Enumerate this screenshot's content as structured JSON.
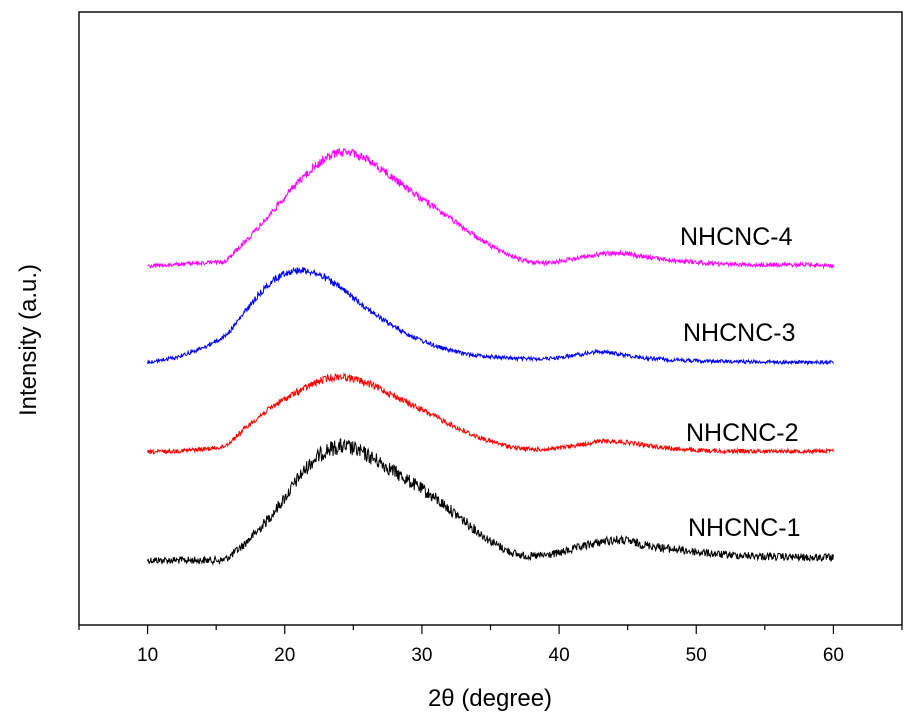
{
  "chart_data": {
    "type": "line",
    "xlabel": "2θ (degree)",
    "ylabel": "Intensity (a.u.)",
    "xlim": [
      5,
      65
    ],
    "x_ticks": [
      "10",
      "20",
      "30",
      "40",
      "50",
      "60"
    ],
    "y_ticks_shown": false,
    "grid": false,
    "legend": "none (series labelled inline at right)",
    "series": [
      {
        "name": "NHCNC-1",
        "color": "#000000",
        "x": [
          10,
          12,
          14,
          15.5,
          16,
          17,
          18,
          19,
          20,
          21,
          22,
          23,
          24,
          25,
          26,
          27,
          28,
          29,
          30,
          31,
          32,
          33,
          34,
          35,
          36,
          37,
          38,
          39,
          40,
          41,
          42,
          43,
          44,
          45,
          46,
          48,
          50,
          52,
          55,
          58,
          60
        ],
        "y": [
          0.05,
          0.05,
          0.05,
          0.05,
          0.12,
          0.33,
          0.58,
          0.86,
          1.18,
          1.55,
          1.85,
          2.05,
          2.12,
          2.08,
          1.96,
          1.82,
          1.66,
          1.5,
          1.34,
          1.17,
          0.98,
          0.78,
          0.58,
          0.4,
          0.25,
          0.15,
          0.12,
          0.14,
          0.18,
          0.25,
          0.32,
          0.38,
          0.42,
          0.4,
          0.34,
          0.26,
          0.2,
          0.15,
          0.12,
          0.1,
          0.1
        ]
      },
      {
        "name": "NHCNC-2",
        "color": "#ff0000",
        "x": [
          10,
          12,
          14,
          15.5,
          16,
          17,
          18,
          19,
          20,
          21,
          22,
          23,
          24,
          25,
          26,
          27,
          28,
          29,
          30,
          31,
          32,
          33,
          34,
          35,
          36,
          37,
          38,
          39,
          40,
          41,
          42,
          43,
          44,
          45,
          46,
          48,
          50,
          52,
          55,
          58,
          60
        ],
        "y": [
          0.03,
          0.05,
          0.08,
          0.12,
          0.2,
          0.42,
          0.62,
          0.8,
          0.95,
          1.08,
          1.2,
          1.3,
          1.34,
          1.3,
          1.22,
          1.12,
          1.0,
          0.88,
          0.76,
          0.64,
          0.52,
          0.4,
          0.3,
          0.22,
          0.15,
          0.1,
          0.08,
          0.08,
          0.1,
          0.14,
          0.18,
          0.22,
          0.22,
          0.2,
          0.16,
          0.1,
          0.06,
          0.05,
          0.05,
          0.05,
          0.05
        ]
      },
      {
        "name": "NHCNC-3",
        "color": "#0000ff",
        "x": [
          10,
          12,
          14,
          15.5,
          16,
          17,
          18,
          19,
          20,
          21,
          22,
          23,
          24,
          25,
          26,
          27,
          28,
          29,
          30,
          31,
          32,
          33,
          34,
          35,
          36,
          37,
          38,
          39,
          40,
          41,
          42,
          43,
          44,
          45,
          46,
          48,
          50,
          52,
          55,
          58,
          60
        ],
        "y": [
          0.03,
          0.12,
          0.3,
          0.5,
          0.62,
          0.95,
          1.28,
          1.55,
          1.72,
          1.78,
          1.74,
          1.62,
          1.45,
          1.25,
          1.05,
          0.86,
          0.7,
          0.56,
          0.44,
          0.34,
          0.26,
          0.2,
          0.16,
          0.14,
          0.12,
          0.1,
          0.1,
          0.1,
          0.12,
          0.16,
          0.2,
          0.24,
          0.2,
          0.16,
          0.12,
          0.08,
          0.06,
          0.05,
          0.04,
          0.03,
          0.03
        ]
      },
      {
        "name": "NHCNC-4",
        "color": "#ff00ff",
        "x": [
          10,
          12,
          14,
          15.5,
          16,
          17,
          18,
          19,
          20,
          21,
          22,
          23,
          24,
          25,
          26,
          27,
          28,
          29,
          30,
          31,
          32,
          33,
          34,
          35,
          36,
          37,
          38,
          39,
          40,
          41,
          42,
          43,
          44,
          45,
          46,
          48,
          50,
          52,
          55,
          58,
          60
        ],
        "y": [
          0.0,
          0.02,
          0.05,
          0.06,
          0.15,
          0.38,
          0.62,
          0.88,
          1.15,
          1.4,
          1.62,
          1.8,
          1.9,
          1.88,
          1.78,
          1.62,
          1.45,
          1.28,
          1.12,
          0.96,
          0.8,
          0.64,
          0.48,
          0.34,
          0.22,
          0.12,
          0.06,
          0.05,
          0.08,
          0.12,
          0.16,
          0.2,
          0.22,
          0.2,
          0.16,
          0.1,
          0.06,
          0.03,
          0.02,
          0.02,
          0.0
        ]
      }
    ]
  }
}
